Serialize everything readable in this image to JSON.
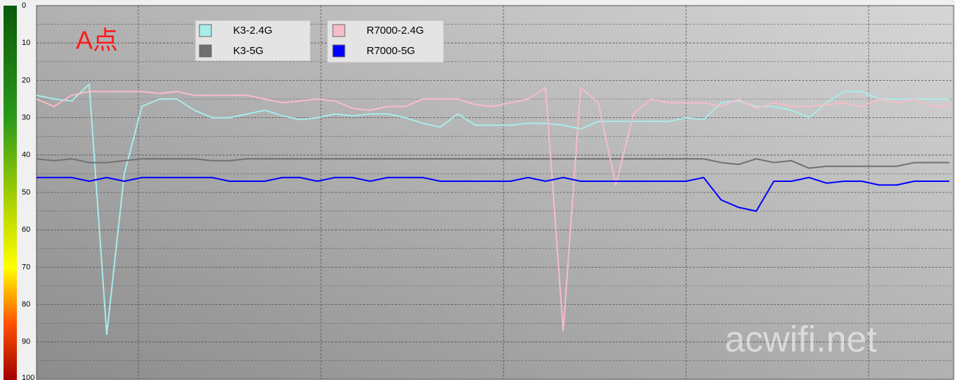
{
  "chart_data": {
    "type": "line",
    "title": "A点",
    "annotation": "acwifi.net",
    "categories": [
      null,
      null,
      null,
      null,
      null,
      null,
      null,
      null,
      null,
      null,
      null,
      null,
      null,
      null,
      null,
      null,
      null,
      null,
      null,
      null,
      null,
      null,
      null,
      null,
      null,
      null,
      null,
      null,
      null,
      null,
      null,
      null,
      null,
      null,
      null,
      null,
      null,
      null,
      null,
      null,
      null,
      null,
      null,
      null,
      null,
      null,
      null,
      null,
      null,
      null,
      null,
      null,
      null
    ],
    "series": [
      {
        "name": "K3-2.4G",
        "color": "#a8ecec",
        "values": [
          24,
          25,
          25.5,
          21,
          88,
          45,
          27,
          25,
          25,
          28,
          30,
          30,
          29,
          28,
          29.5,
          30.5,
          30,
          29,
          29.5,
          29,
          29,
          30,
          31.5,
          32.5,
          29,
          32,
          32,
          32,
          31.5,
          31.5,
          32,
          33,
          31,
          31,
          31,
          31,
          31,
          30,
          30.5,
          26,
          25.5,
          27,
          27,
          28,
          30,
          26,
          23,
          23,
          25,
          25,
          25,
          25,
          25
        ]
      },
      {
        "name": "K3-5G",
        "color": "#707070",
        "values": [
          41,
          41.5,
          41,
          42,
          42,
          41.5,
          41,
          41,
          41,
          41,
          41.5,
          41.5,
          41,
          41,
          41,
          41,
          41,
          41,
          41,
          41,
          41,
          41,
          41,
          41,
          41,
          41,
          41,
          41,
          41,
          41,
          41,
          41,
          41,
          41,
          41,
          41,
          41,
          41,
          41,
          42,
          42.5,
          41,
          42,
          41.5,
          43.5,
          43,
          43,
          43,
          43,
          43,
          42,
          42,
          42
        ]
      },
      {
        "name": "R7000-2.4G",
        "color": "#f8bcc8",
        "values": [
          25,
          27,
          24,
          23,
          23,
          23,
          23,
          23.5,
          23,
          24,
          24,
          24,
          24,
          25,
          26,
          25.5,
          25,
          25.5,
          27.5,
          28,
          27,
          27,
          25,
          25,
          25,
          26.5,
          27,
          26,
          25,
          22,
          87,
          22,
          26,
          48,
          29,
          25,
          26,
          26,
          26,
          27,
          25,
          27.5,
          26,
          27,
          27,
          26.5,
          26,
          27,
          25,
          26,
          25,
          27,
          27
        ]
      },
      {
        "name": "R7000-5G",
        "color": "#0000ff",
        "values": [
          46,
          46,
          46,
          47,
          46,
          47,
          46,
          46,
          46,
          46,
          46,
          47,
          47,
          47,
          46,
          46,
          47,
          46,
          46,
          47,
          46,
          46,
          46,
          47,
          47,
          47,
          47,
          47,
          46,
          47,
          46,
          47,
          47,
          47,
          47,
          47,
          47,
          47,
          46,
          52,
          54,
          55,
          47,
          47,
          46,
          47.5,
          47,
          47,
          48,
          48,
          47,
          47,
          47
        ]
      }
    ],
    "ylim": [
      0,
      100
    ],
    "yticks": [
      0,
      10,
      20,
      30,
      40,
      50,
      60,
      70,
      80,
      90,
      100
    ],
    "grid": true
  }
}
